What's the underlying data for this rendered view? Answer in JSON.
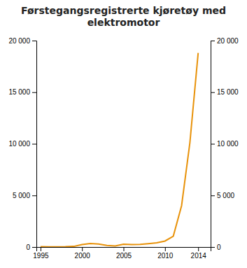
{
  "chart_data": {
    "type": "line",
    "title": "Førstegangsregistrerte kjøretøy med\nelektromotor",
    "x": [
      1995,
      1996,
      1997,
      1998,
      1999,
      2000,
      2001,
      2002,
      2003,
      2004,
      2005,
      2006,
      2007,
      2008,
      2009,
      2010,
      2011,
      2012,
      2013,
      2014
    ],
    "values": [
      30,
      25,
      20,
      30,
      60,
      230,
      340,
      290,
      160,
      100,
      270,
      240,
      260,
      330,
      400,
      580,
      1050,
      4000,
      10100,
      18800
    ],
    "color": "#E8920A",
    "xlim": [
      1994.5,
      2015.5
    ],
    "xticks": [
      1995,
      2000,
      2005,
      2010,
      2014
    ],
    "ylim": [
      0,
      20000
    ],
    "yticks": [
      0,
      {
        "value": 5000,
        "label": "5 000"
      },
      {
        "value": 10000,
        "label": "10 000"
      },
      {
        "value": 15000,
        "label": "15 000"
      },
      {
        "value": 20000,
        "label": "20 000"
      }
    ],
    "y2lim": [
      0,
      20000
    ],
    "y2ticks": [
      0,
      {
        "value": 5000,
        "label": "5 000"
      },
      {
        "value": 10000,
        "label": "10 000"
      },
      {
        "value": 15000,
        "label": "15 000"
      },
      {
        "value": 20000,
        "label": "20 000"
      }
    ],
    "grid": false
  }
}
